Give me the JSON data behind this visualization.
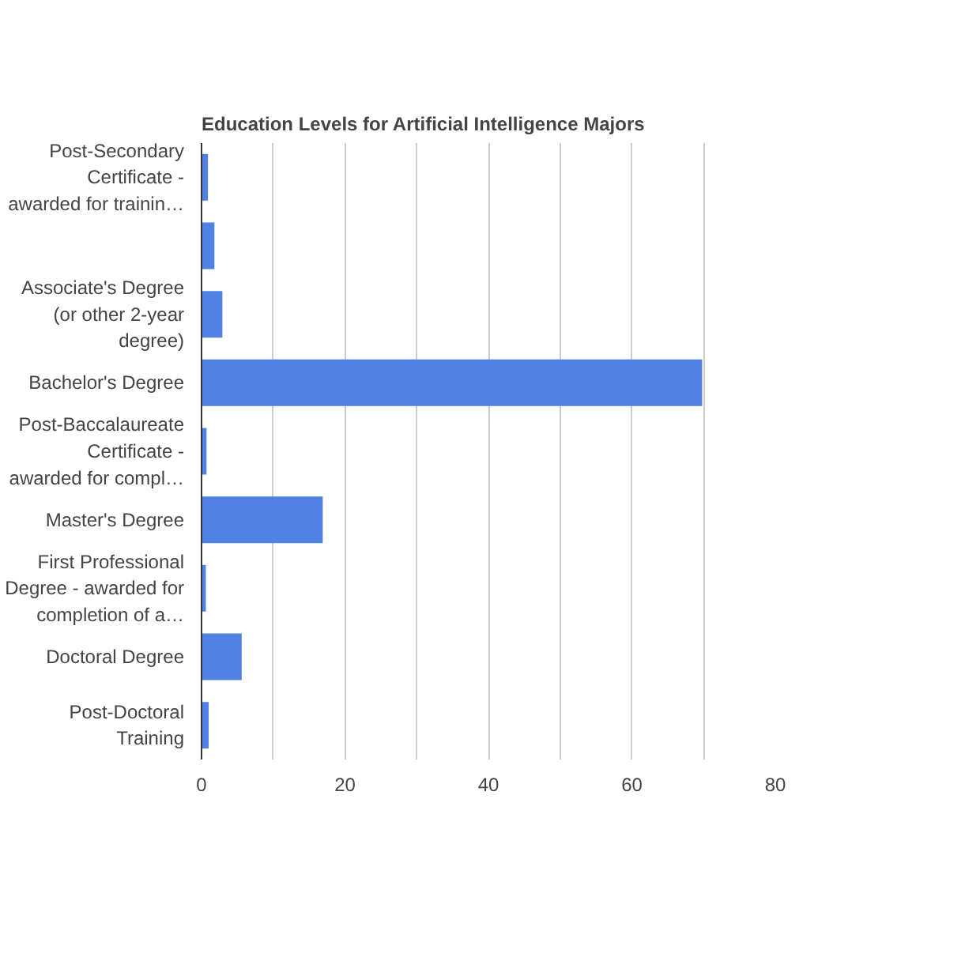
{
  "chart_data": {
    "type": "bar",
    "orientation": "horizontal",
    "title": "Education Levels for Artificial Intelligence Majors",
    "categories": [
      "Post-Secondary Certificate - awarded for trainin…",
      null,
      "Associate's Degree (or other 2-year degree)",
      "Bachelor's Degree",
      "Post-Baccalaureate Certificate - awarded for compl…",
      "Master's Degree",
      "First Professional Degree - awarded for completion of a…",
      "Doctoral Degree",
      "Post-Doctoral Training"
    ],
    "values": [
      0.9,
      1.8,
      2.9,
      69.8,
      0.7,
      16.9,
      0.6,
      5.6,
      1.0
    ],
    "color": "#5181e3",
    "xlim": [
      0,
      80
    ],
    "xticks": [
      0,
      {
        "value": 10,
        "label": null
      },
      20,
      {
        "value": 30,
        "label": null
      },
      40,
      {
        "value": 50,
        "label": null
      },
      60,
      {
        "value": 70,
        "label": null
      },
      80
    ],
    "grid": "x"
  }
}
